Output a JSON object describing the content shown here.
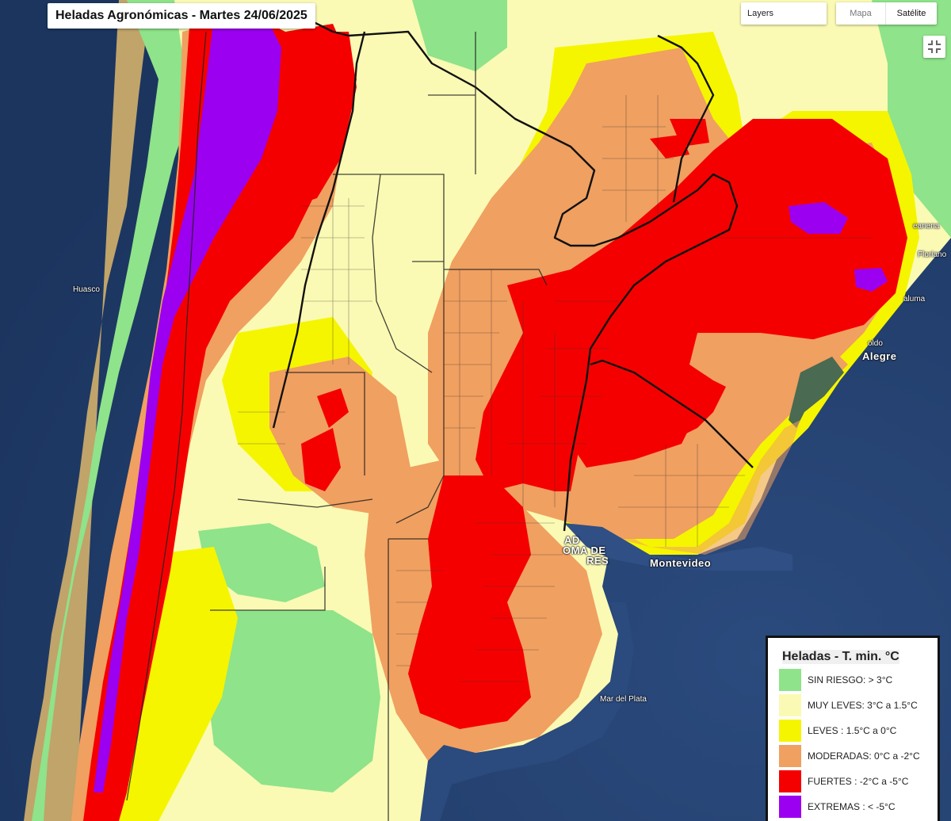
{
  "title": "Heladas Agronómicas - Martes 24/06/2025",
  "controls": {
    "layers_label": "Layers",
    "maptype": {
      "mapa": "Mapa",
      "satelite": "Satélite"
    }
  },
  "cities": {
    "huasco": "Huasco",
    "florian": "Floriano",
    "aluma": "aluma",
    "canena": "eanena",
    "porto_alegre_top": "oldo",
    "porto_alegre": "Alegre",
    "buenos_aires_1": "AD",
    "buenos_aires_2": "OMA DE",
    "buenos_aires_3": "RES",
    "montevideo": "Montevideo",
    "mar_del_plata": "Mar del Plata"
  },
  "legend": {
    "title": "Heladas - T. min. °C",
    "items": [
      {
        "label": "SIN RIESGO: > 3°C",
        "color": "#8fe38a"
      },
      {
        "label": "MUY LEVES: 3°C a 1.5°C",
        "color": "#fafab4"
      },
      {
        "label": "LEVES : 1.5°C a 0°C",
        "color": "#f5f500"
      },
      {
        "label": "MODERADAS: 0°C a -2°C",
        "color": "#f0a060"
      },
      {
        "label": "FUERTES : -2°C a -5°C",
        "color": "#f50000"
      },
      {
        "label": "EXTREMAS : < -5°C",
        "color": "#9b00f0"
      }
    ]
  },
  "colors": {
    "ocean": "#1f3a66",
    "sin_riesgo": "#8fe38a",
    "muy_leves": "#fafab4",
    "leves": "#f5f500",
    "moderadas": "#f0a060",
    "fuertes": "#f50000",
    "extremas": "#9b00f0"
  }
}
